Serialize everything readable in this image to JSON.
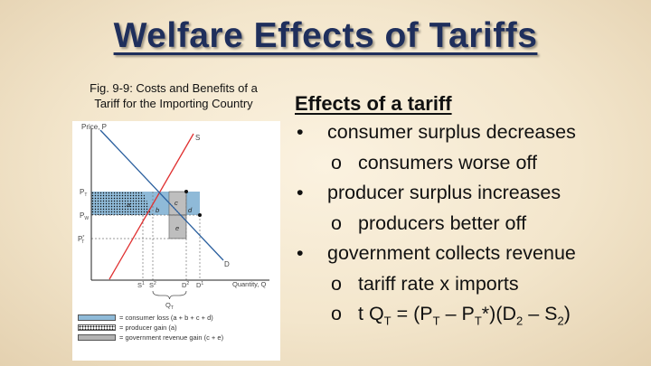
{
  "slide": {
    "title": "Welfare Effects of Tariffs",
    "caption_line1": "Fig. 9-9: Costs and Benefits of a",
    "caption_line2": "Tariff for the Importing Country"
  },
  "figure": {
    "y_axis_label": "Price, P",
    "x_axis_label": "Quantity, Q",
    "supply_label": "S",
    "demand_label": "D",
    "price_labels": {
      "pt": "P",
      "pt_sub": "T",
      "pw": "P",
      "pw_sub": "W",
      "pts": "P",
      "pts_sub": "T",
      "pts_sup": "*"
    },
    "quantity_labels": {
      "s1": "S",
      "s1_sup": "1",
      "s2": "S",
      "s2_sup": "2",
      "d2": "D",
      "d2_sup": "2",
      "d1": "D",
      "d1_sup": "1"
    },
    "region_labels": {
      "a": "a",
      "b": "b",
      "c": "c",
      "d": "d",
      "e": "e"
    },
    "imports_label": "Q",
    "imports_sub": "T",
    "legend": [
      {
        "swatch": "blue",
        "text": "= consumer loss (a + b + c + d)"
      },
      {
        "swatch": "dots",
        "text": "= producer gain (a)"
      },
      {
        "swatch": "gray",
        "text": "= government revenue gain (c + e)"
      }
    ]
  },
  "effects": {
    "heading": "Effects of a tariff",
    "bullet_mark": "•",
    "sub_mark": "o",
    "items": [
      {
        "text": "consumer surplus decreases",
        "sub": "consumers worse off"
      },
      {
        "text": "producer surplus increases",
        "sub": "producers better off"
      },
      {
        "text": "government collects revenue",
        "sub": "tariff rate x imports"
      }
    ],
    "formula": {
      "t": "t Q",
      "t_sub": "T",
      "eq": " = (P",
      "p1_sub": "T",
      "minus": " – P",
      "p2_sub": "T",
      "star": "*)(D",
      "d_sub": "2",
      "minus2": " – S",
      "s_sub": "2",
      "close": ")"
    }
  },
  "colors": {
    "title": "#1f2f5c",
    "consumer_loss": "#8fbad8",
    "supply_line": "#e03030",
    "demand_line": "#2a5f9e"
  }
}
